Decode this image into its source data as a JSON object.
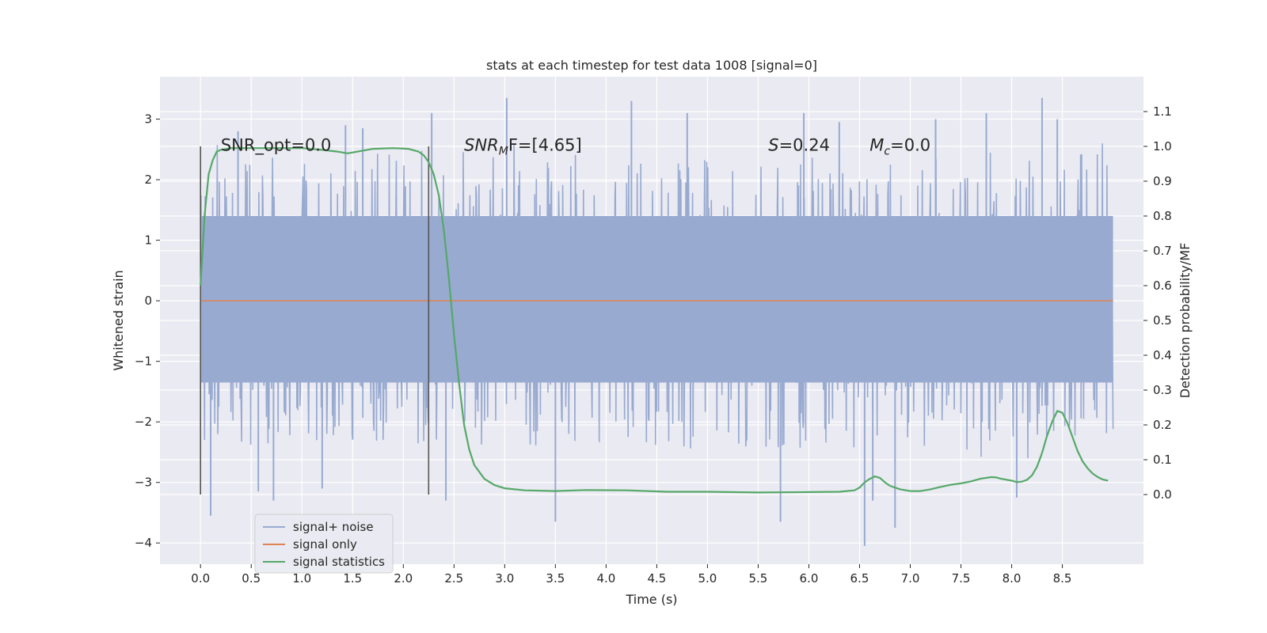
{
  "chart_data": {
    "type": "line",
    "title": "stats at each timestep for test data 1008 [signal=0]",
    "xlabel": "Time (s)",
    "ylabel": "Whitened strain",
    "y2label": "Detection probability/MF",
    "xlim": [
      -0.4,
      9.3
    ],
    "ylim": [
      -4.35,
      3.7
    ],
    "y2lim": [
      -0.2,
      1.2
    ],
    "x_ticks": [
      0.0,
      0.5,
      1.0,
      1.5,
      2.0,
      2.5,
      3.0,
      3.5,
      4.0,
      4.5,
      5.0,
      5.5,
      6.0,
      6.5,
      7.0,
      7.5,
      8.0,
      8.5
    ],
    "x_tick_labels": [
      "0.0",
      "0.5",
      "1.0",
      "1.5",
      "2.0",
      "2.5",
      "3.0",
      "3.5",
      "4.0",
      "4.5",
      "5.0",
      "5.5",
      "6.0",
      "6.5",
      "7.0",
      "7.5",
      "8.0",
      "8.5"
    ],
    "y_ticks": [
      3,
      2,
      1,
      0,
      -1,
      -2,
      -3,
      -4
    ],
    "y_tick_labels": [
      "3",
      "2",
      "1",
      "0",
      "−1",
      "−2",
      "−3",
      "−4"
    ],
    "y2_ticks": [
      1.1,
      1.0,
      0.9,
      0.8,
      0.7,
      0.6,
      0.5,
      0.4,
      0.3,
      0.2,
      0.1,
      0.0
    ],
    "y2_tick_labels": [
      "1.1",
      "1.0",
      "0.9",
      "0.8",
      "0.7",
      "0.6",
      "0.5",
      "0.4",
      "0.3",
      "0.2",
      "0.1",
      "0.0"
    ],
    "grid": true,
    "legend_position": "lower-left",
    "colors": {
      "background": "#eaeaf2",
      "grid": "#ffffff",
      "noise": "#98aad0",
      "signal": "#dd8452",
      "stats": "#55a868",
      "vline": "#555555"
    },
    "series": [
      {
        "name": "signal+ noise",
        "color": "#98aad0",
        "axis": "left",
        "t_range": [
          0.0,
          9.0
        ],
        "core_band": [
          -1.35,
          1.4
        ],
        "envelope_upper_typical": 2.2,
        "envelope_lower_typical": -2.0,
        "spikes": [
          {
            "t": 0.1,
            "y": -3.55
          },
          {
            "t": 0.37,
            "y": 2.8
          },
          {
            "t": 0.57,
            "y": -3.15
          },
          {
            "t": 0.72,
            "y": -3.3
          },
          {
            "t": 1.2,
            "y": -3.1
          },
          {
            "t": 1.43,
            "y": 2.9
          },
          {
            "t": 1.6,
            "y": 2.85
          },
          {
            "t": 2.28,
            "y": 3.1
          },
          {
            "t": 2.42,
            "y": -3.3
          },
          {
            "t": 3.02,
            "y": 3.35
          },
          {
            "t": 3.5,
            "y": -3.65
          },
          {
            "t": 4.25,
            "y": 3.3
          },
          {
            "t": 4.8,
            "y": 3.1
          },
          {
            "t": 5.72,
            "y": -3.65
          },
          {
            "t": 5.95,
            "y": 3.1
          },
          {
            "t": 6.3,
            "y": 2.95
          },
          {
            "t": 6.55,
            "y": -4.05
          },
          {
            "t": 6.63,
            "y": -3.3
          },
          {
            "t": 6.85,
            "y": -3.75
          },
          {
            "t": 7.25,
            "y": 3.0
          },
          {
            "t": 7.75,
            "y": 3.1
          },
          {
            "t": 8.3,
            "y": 3.35
          },
          {
            "t": 8.45,
            "y": 3.0
          },
          {
            "t": 8.05,
            "y": -3.25
          }
        ]
      },
      {
        "name": "signal only",
        "color": "#dd8452",
        "axis": "left",
        "x": [
          0.0,
          9.0
        ],
        "y": [
          0.0,
          0.0
        ]
      },
      {
        "name": "signal statistics",
        "color": "#55a868",
        "axis": "right",
        "x": [
          0.0,
          0.04,
          0.08,
          0.12,
          0.16,
          0.2,
          0.3,
          0.5,
          0.7,
          1.0,
          1.2,
          1.35,
          1.45,
          1.55,
          1.7,
          1.9,
          2.05,
          2.15,
          2.2,
          2.25,
          2.3,
          2.35,
          2.4,
          2.45,
          2.5,
          2.55,
          2.6,
          2.65,
          2.7,
          2.8,
          2.9,
          3.0,
          3.2,
          3.5,
          3.8,
          4.2,
          4.6,
          5.0,
          5.5,
          6.0,
          6.3,
          6.45,
          6.5,
          6.55,
          6.6,
          6.65,
          6.7,
          6.75,
          6.8,
          6.9,
          7.0,
          7.1,
          7.2,
          7.3,
          7.4,
          7.5,
          7.6,
          7.7,
          7.8,
          7.85,
          7.9,
          8.0,
          8.05,
          8.1,
          8.15,
          8.2,
          8.25,
          8.3,
          8.35,
          8.4,
          8.45,
          8.5,
          8.55,
          8.6,
          8.65,
          8.7,
          8.75,
          8.8,
          8.85,
          8.9,
          8.95
        ],
        "y": [
          0.6,
          0.8,
          0.92,
          0.96,
          0.985,
          0.99,
          0.995,
          0.995,
          0.995,
          0.995,
          0.99,
          0.985,
          0.98,
          0.985,
          0.993,
          0.995,
          0.993,
          0.985,
          0.975,
          0.955,
          0.92,
          0.86,
          0.76,
          0.62,
          0.46,
          0.32,
          0.2,
          0.13,
          0.085,
          0.045,
          0.027,
          0.018,
          0.012,
          0.01,
          0.013,
          0.012,
          0.008,
          0.008,
          0.006,
          0.007,
          0.008,
          0.012,
          0.02,
          0.035,
          0.045,
          0.052,
          0.048,
          0.035,
          0.025,
          0.015,
          0.01,
          0.01,
          0.015,
          0.022,
          0.028,
          0.032,
          0.038,
          0.046,
          0.05,
          0.049,
          0.045,
          0.04,
          0.036,
          0.037,
          0.042,
          0.055,
          0.08,
          0.12,
          0.17,
          0.21,
          0.24,
          0.235,
          0.205,
          0.165,
          0.125,
          0.095,
          0.075,
          0.06,
          0.05,
          0.043,
          0.04
        ]
      }
    ],
    "vlines": [
      0.0,
      2.25
    ],
    "vline_range": [
      -3.2,
      2.55
    ],
    "annotations": [
      {
        "text": "SNR_opt=0.0",
        "x": 0.2,
        "y": 2.57,
        "italic": false
      },
      {
        "text": "SNR",
        "sub": "M",
        "rest": "F=[4.65]",
        "x": 2.6,
        "y": 2.57,
        "italic": true
      },
      {
        "text": "S",
        "rest": "=0.24",
        "x": 5.6,
        "y": 2.57,
        "italic": true
      },
      {
        "text": "M",
        "sub": "c",
        "rest": "=0.0",
        "x": 6.6,
        "y": 2.57,
        "italic": true
      }
    ],
    "legend": [
      "signal+ noise",
      "signal only",
      "signal statistics"
    ]
  }
}
